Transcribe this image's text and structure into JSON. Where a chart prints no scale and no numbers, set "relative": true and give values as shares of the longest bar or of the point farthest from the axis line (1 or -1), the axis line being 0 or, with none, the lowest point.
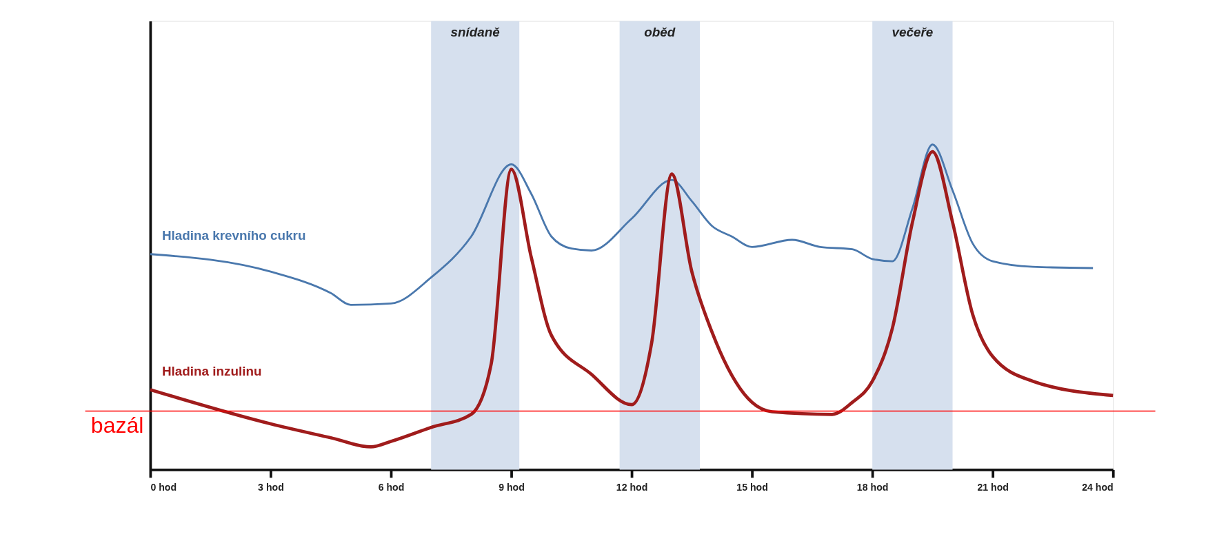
{
  "chart_data": {
    "type": "line",
    "relative": true,
    "xlim": [
      0,
      24
    ],
    "xticks": [
      {
        "value": 0,
        "label": "0 hod"
      },
      {
        "value": 3,
        "label": "3 hod"
      },
      {
        "value": 6,
        "label": "6 hod"
      },
      {
        "value": 9,
        "label": "9 hod"
      },
      {
        "value": 12,
        "label": "12 hod"
      },
      {
        "value": 15,
        "label": "15 hod"
      },
      {
        "value": 18,
        "label": "18 hod"
      },
      {
        "value": 21,
        "label": "21 hod"
      },
      {
        "value": 24,
        "label": "24 hod"
      }
    ],
    "series": [
      {
        "name": "Hladina krevního cukru",
        "color": "#4a78ad",
        "x": [
          0,
          3,
          4.5,
          5,
          6,
          7,
          8,
          9,
          9.5,
          10,
          10.5,
          11,
          12,
          13,
          13.5,
          14,
          14.5,
          15,
          16,
          16.7,
          17.5,
          18,
          18.5,
          19,
          19.5,
          20,
          20.5,
          21,
          22,
          23.5
        ],
        "values": [
          0.663,
          0.609,
          0.543,
          0.507,
          0.511,
          0.591,
          0.717,
          0.939,
          0.848,
          0.717,
          0.68,
          0.674,
          0.772,
          0.891,
          0.826,
          0.75,
          0.717,
          0.685,
          0.707,
          0.685,
          0.678,
          0.648,
          0.641,
          0.804,
          1,
          0.859,
          0.696,
          0.641,
          0.624,
          0.62
        ]
      },
      {
        "name": "Hladina inzulinu",
        "color": "#a01c1c",
        "x": [
          0,
          3,
          4.5,
          5.5,
          6,
          7,
          8,
          8.5,
          9,
          9.5,
          10,
          11,
          12,
          12.5,
          13,
          13.5,
          14,
          15,
          15.5,
          17,
          17.5,
          18,
          18.5,
          19,
          19.5,
          20,
          20.5,
          21,
          22,
          24
        ],
        "values": [
          0.246,
          0.141,
          0.098,
          0.07,
          0.087,
          0.13,
          0.17,
          0.326,
          0.924,
          0.652,
          0.413,
          0.293,
          0.2,
          0.391,
          0.909,
          0.609,
          0.424,
          0.207,
          0.178,
          0.17,
          0.207,
          0.272,
          0.435,
          0.761,
          0.978,
          0.761,
          0.478,
          0.348,
          0.272,
          0.228
        ]
      }
    ],
    "bands": [
      {
        "axis": "x",
        "from": 7,
        "to": 9.2,
        "label": "snídaně",
        "color": "#d6e0ee"
      },
      {
        "axis": "x",
        "from": 11.7,
        "to": 13.7,
        "label": "oběd",
        "color": "#d6e0ee"
      },
      {
        "axis": "x",
        "from": 18,
        "to": 20,
        "label": "večeře",
        "color": "#d6e0ee"
      }
    ],
    "ref_lines": [
      {
        "axis": "y",
        "value": 0.18,
        "label": "bazál",
        "color": "#ff0000"
      }
    ],
    "grid": false,
    "marker": "none",
    "line_style": "solid"
  }
}
